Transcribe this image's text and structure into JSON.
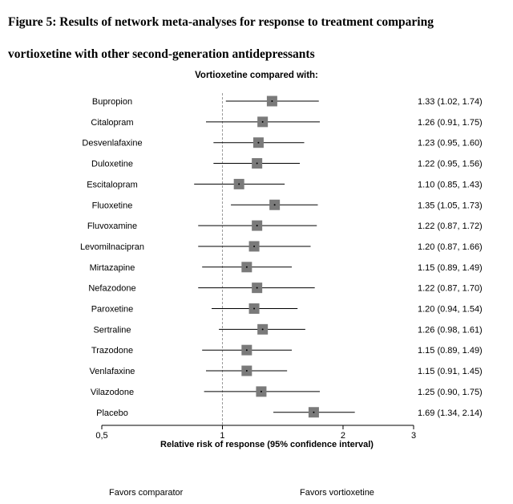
{
  "figure": {
    "title_line1": "Figure 5: Results of network meta-analyses for response to treatment comparing",
    "title_line2": "vortioxetine with other second-generation antidepressants",
    "heading": "Vortioxetine compared with:",
    "favors_left": "Favors comparator",
    "favors_right": "Favors vortioxetine"
  },
  "chart_data": {
    "type": "forest",
    "xlabel": "Relative risk of response (95% confidence interval)",
    "xscale": "log",
    "xlim": [
      0.5,
      3
    ],
    "xticks": [
      0.5,
      1,
      2,
      3
    ],
    "xtick_labels": [
      "0,5",
      "1",
      "2",
      "3"
    ],
    "reference_line": 1,
    "rows": [
      {
        "name": "Bupropion",
        "rr": 1.33,
        "lo": 1.02,
        "hi": 1.74,
        "text": "1.33 (1.02, 1.74)"
      },
      {
        "name": "Citalopram",
        "rr": 1.26,
        "lo": 0.91,
        "hi": 1.75,
        "text": "1.26 (0.91, 1.75)"
      },
      {
        "name": "Desvenlafaxine",
        "rr": 1.23,
        "lo": 0.95,
        "hi": 1.6,
        "text": "1.23 (0.95, 1.60)"
      },
      {
        "name": "Duloxetine",
        "rr": 1.22,
        "lo": 0.95,
        "hi": 1.56,
        "text": "1.22 (0.95, 1.56)"
      },
      {
        "name": "Escitalopram",
        "rr": 1.1,
        "lo": 0.85,
        "hi": 1.43,
        "text": "1.10 (0.85, 1.43)"
      },
      {
        "name": "Fluoxetine",
        "rr": 1.35,
        "lo": 1.05,
        "hi": 1.73,
        "text": "1.35 (1.05, 1.73)"
      },
      {
        "name": "Fluvoxamine",
        "rr": 1.22,
        "lo": 0.87,
        "hi": 1.72,
        "text": "1.22 (0.87, 1.72)"
      },
      {
        "name": "Levomilnacipran",
        "rr": 1.2,
        "lo": 0.87,
        "hi": 1.66,
        "text": "1.20 (0.87, 1.66)"
      },
      {
        "name": "Mirtazapine",
        "rr": 1.15,
        "lo": 0.89,
        "hi": 1.49,
        "text": "1.15 (0.89, 1.49)"
      },
      {
        "name": "Nefazodone",
        "rr": 1.22,
        "lo": 0.87,
        "hi": 1.7,
        "text": "1.22 (0.87, 1.70)"
      },
      {
        "name": "Paroxetine",
        "rr": 1.2,
        "lo": 0.94,
        "hi": 1.54,
        "text": "1.20 (0.94, 1.54)"
      },
      {
        "name": "Sertraline",
        "rr": 1.26,
        "lo": 0.98,
        "hi": 1.61,
        "text": "1.26 (0.98, 1.61)"
      },
      {
        "name": "Trazodone",
        "rr": 1.15,
        "lo": 0.89,
        "hi": 1.49,
        "text": "1.15 (0.89, 1.49)"
      },
      {
        "name": "Venlafaxine",
        "rr": 1.15,
        "lo": 0.91,
        "hi": 1.45,
        "text": "1.15 (0.91, 1.45)"
      },
      {
        "name": "Vilazodone",
        "rr": 1.25,
        "lo": 0.9,
        "hi": 1.75,
        "text": "1.25 (0.90, 1.75)"
      },
      {
        "name": "Placebo",
        "rr": 1.69,
        "lo": 1.34,
        "hi": 2.14,
        "text": "1.69 (1.34, 2.14)"
      }
    ],
    "colors": {
      "square": "#7a7a7a",
      "line": "#000000",
      "reference": "#9a9a9a"
    }
  }
}
